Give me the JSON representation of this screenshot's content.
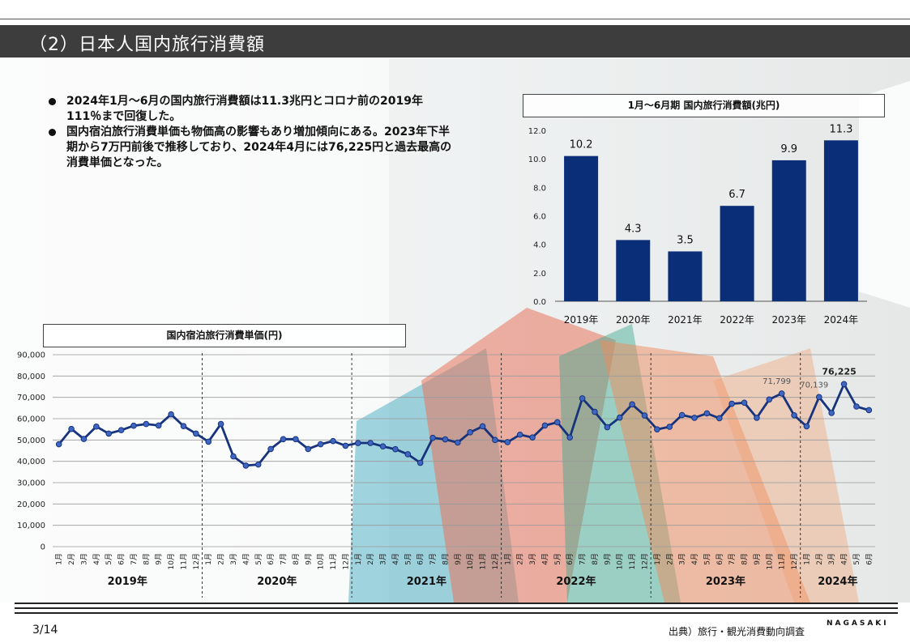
{
  "header": {
    "title": "（2）日本人国内旅行消費額"
  },
  "bullets": [
    "2024年1月～6月の国内旅行消費額は11.3兆円とコロナ前の2019年111％まで回復した。",
    "国内宿泊旅行消費単価も物価高の影響もあり増加傾向にある。2023年下半期から7万円前後で推移しており、2024年4月には76,225円と過去最高の消費単価となった。"
  ],
  "footer": {
    "page": "3/14",
    "source": "出典）旅行・観光消費動向調査",
    "logo": "NAGASAKI"
  },
  "colors": {
    "bar": "#0a2e78",
    "line": "#16337c",
    "title_bar": "#3d3d3d"
  },
  "chart_data": [
    {
      "type": "bar",
      "title": "1月～6月期  国内旅行消費額(兆円)",
      "categories": [
        "2019年",
        "2020年",
        "2021年",
        "2022年",
        "2023年",
        "2024年"
      ],
      "values": [
        10.2,
        4.3,
        3.5,
        6.7,
        9.9,
        11.3
      ],
      "ylim": [
        0,
        12
      ],
      "yticks": [
        "0.0",
        "2.0",
        "4.0",
        "6.0",
        "8.0",
        "10.0",
        "12.0"
      ],
      "data_labels": true,
      "grid": false
    },
    {
      "type": "line",
      "title": "国内宿泊旅行消費単価(円)",
      "ylim": [
        0,
        90000
      ],
      "yticks": [
        "0",
        "10,000",
        "20,000",
        "30,000",
        "40,000",
        "50,000",
        "60,000",
        "70,000",
        "80,000",
        "90,000"
      ],
      "grid": true,
      "month_labels": [
        "1月",
        "2月",
        "3月",
        "4月",
        "5月",
        "6月",
        "7月",
        "8月",
        "9月",
        "10月",
        "11月",
        "12月"
      ],
      "years": [
        "2019年",
        "2020年",
        "2021年",
        "2022年",
        "2023年",
        "2024年"
      ],
      "year_month_counts": [
        12,
        12,
        12,
        12,
        12,
        6
      ],
      "values": [
        48000,
        55200,
        50500,
        56300,
        53000,
        54600,
        56700,
        57500,
        56800,
        62000,
        56500,
        53000,
        49200,
        57500,
        42300,
        38000,
        38500,
        45800,
        50400,
        50400,
        45800,
        48000,
        49500,
        47300,
        48600,
        48600,
        47000,
        45700,
        43300,
        39300,
        51000,
        50300,
        48800,
        53600,
        56400,
        50000,
        49000,
        52500,
        51200,
        56800,
        58300,
        51200,
        69500,
        63200,
        56000,
        60500,
        66700,
        61500,
        55000,
        56200,
        61700,
        60400,
        62500,
        60200,
        67000,
        67500,
        60400,
        69000,
        71799,
        61600,
        56400,
        70139,
        62700,
        76225,
        65700,
        64000
      ],
      "annotations": [
        {
          "index": 58,
          "label": "71,799",
          "bold": false
        },
        {
          "index": 61,
          "label": "70,139",
          "bold": false
        },
        {
          "index": 63,
          "label": "76,225",
          "bold": true
        }
      ]
    }
  ]
}
